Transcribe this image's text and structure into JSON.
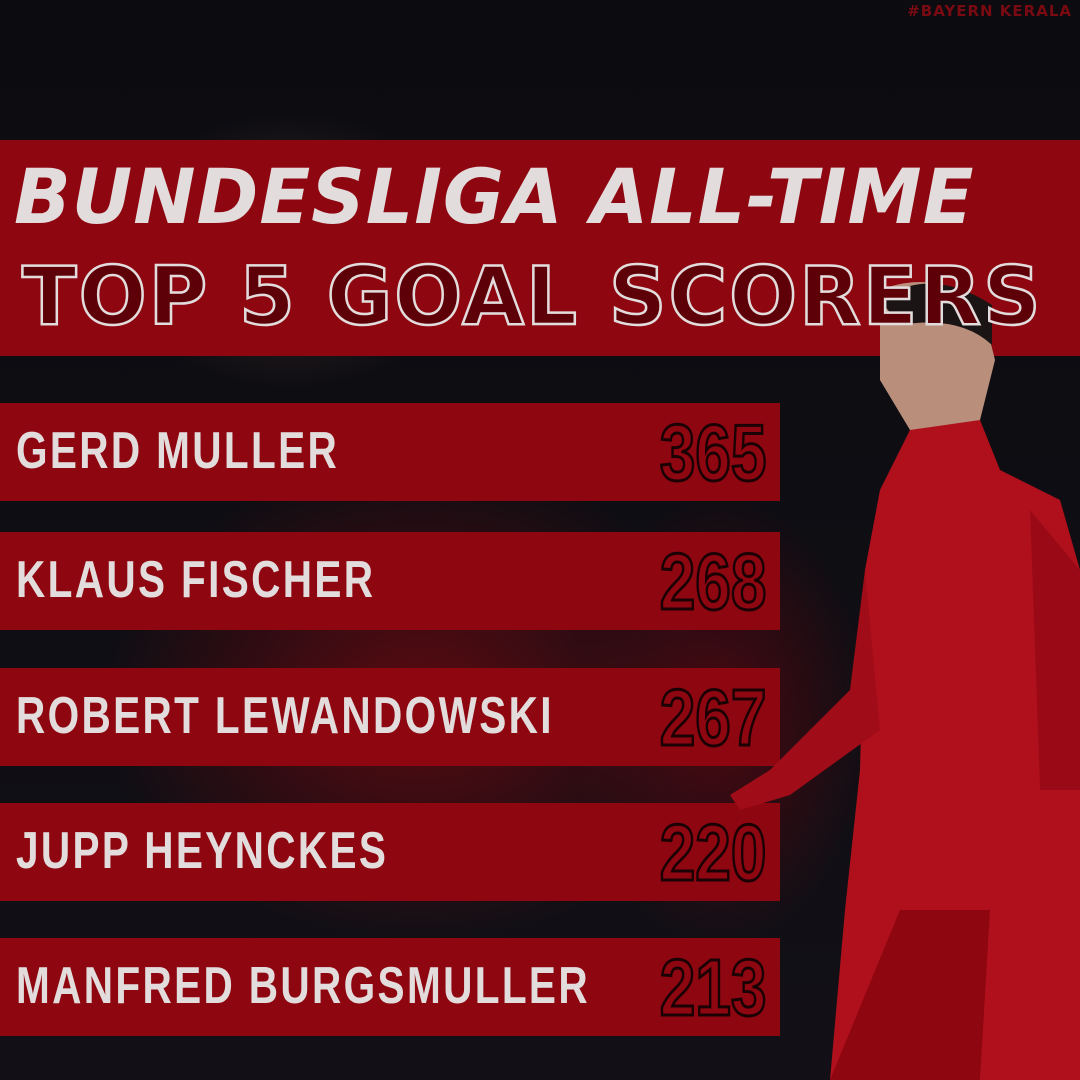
{
  "watermark": "#BAYERN KERALA",
  "title": {
    "line1": "BUNDESLIGA ALL-TIME",
    "line2": "TOP 5 GOAL SCORERS"
  },
  "scorers": [
    {
      "name": "GERD MULLER",
      "goals": "365"
    },
    {
      "name": "KLAUS FISCHER",
      "goals": "268"
    },
    {
      "name": "ROBERT LEWANDOWSKI",
      "goals": "267"
    },
    {
      "name": "JUPP HEYNCKES",
      "goals": "220"
    },
    {
      "name": "MANFRED BURGSMULLER",
      "goals": "213"
    }
  ],
  "colors": {
    "accent": "#8e0610",
    "text": "#e3dcdc",
    "background": "#0a0a0e"
  }
}
